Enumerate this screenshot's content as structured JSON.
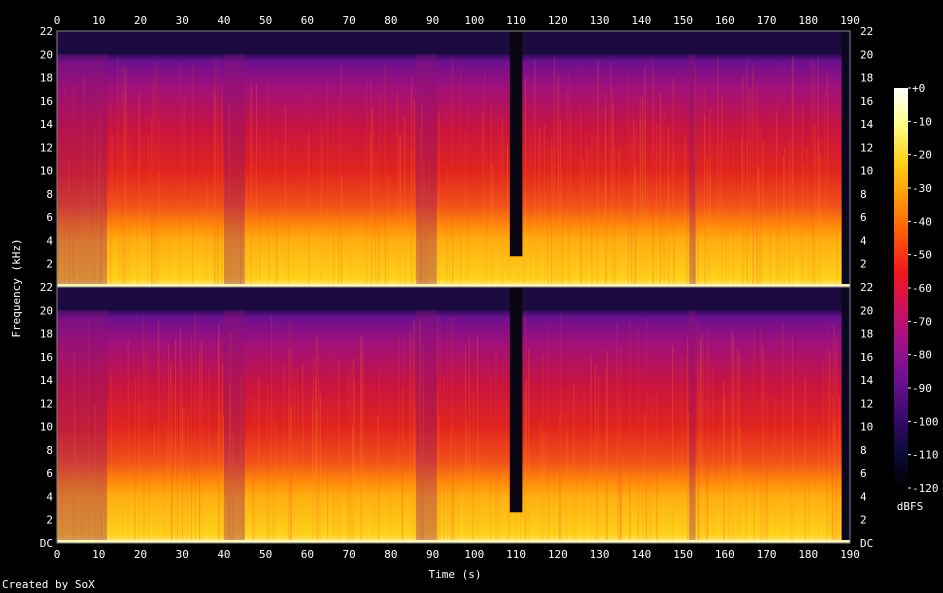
{
  "chart_data": {
    "type": "heatmap",
    "title": "",
    "xlabel": "Time (s)",
    "ylabel": "Frequency (kHz)",
    "colorbar_label": "dBFS",
    "xlim": [
      0,
      190
    ],
    "ylim": [
      0,
      22
    ],
    "x_ticks": [
      "0",
      "10",
      "20",
      "30",
      "40",
      "50",
      "60",
      "70",
      "80",
      "90",
      "100",
      "110",
      "120",
      "130",
      "140",
      "150",
      "160",
      "170",
      "180",
      "190"
    ],
    "y_ticks": [
      "DC",
      "2",
      "4",
      "6",
      "8",
      "10",
      "12",
      "14",
      "16",
      "18",
      "20",
      "22"
    ],
    "colorbar_ticks": [
      "+0",
      "-10",
      "-20",
      "-30",
      "-40",
      "-50",
      "-60",
      "-70",
      "-80",
      "-90",
      "-100",
      "-110",
      "-120"
    ],
    "colorbar_range": [
      -120,
      0
    ],
    "channels": [
      "channel 1",
      "channel 2"
    ],
    "colormap": [
      "#000000",
      "#0d0a3a",
      "#3a0a6e",
      "#6e1090",
      "#a0108a",
      "#d0105a",
      "#f01a1a",
      "#ff5a0a",
      "#ff9a0a",
      "#ffd21a",
      "#ffff8a",
      "#ffffff"
    ],
    "silence_regions_s": [
      [
        108.5,
        111.5
      ]
    ],
    "quieter_regions_s": [
      [
        0,
        12
      ],
      [
        40,
        45
      ],
      [
        86,
        91
      ],
      [
        151.5,
        153
      ]
    ],
    "sound_end_s": 188,
    "upper_cutoff_khz": 20
  },
  "footer": "Created by SoX"
}
